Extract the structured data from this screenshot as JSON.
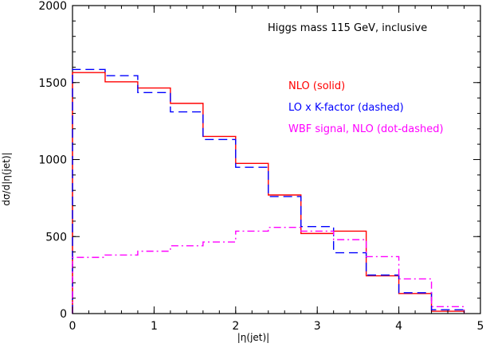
{
  "chart_data": {
    "type": "line",
    "title": "",
    "xlabel": "|η(jet)|",
    "ylabel": "dσ/d|η(jet)|",
    "xlim": [
      0,
      5
    ],
    "ylim": [
      0,
      2000
    ],
    "x_ticks": [
      "0",
      "1",
      "2",
      "3",
      "4",
      "5"
    ],
    "y_ticks": [
      "0",
      "500",
      "1000",
      "1500",
      "2000"
    ],
    "bin_edges": [
      0,
      0.4,
      0.8,
      1.2,
      1.6,
      2.0,
      2.4,
      2.8,
      3.2,
      3.6,
      4.0,
      4.4,
      4.8
    ],
    "annotation": "Higgs mass 115 GeV, inclusive",
    "legend": [
      {
        "text": "NLO (solid)",
        "color": "#ff0000"
      },
      {
        "text": "LO x K-factor (dashed)",
        "color": "#0000ff"
      },
      {
        "text": "WBF signal, NLO (dot-dashed)",
        "color": "#ff00ff"
      }
    ],
    "series": [
      {
        "style": "solid",
        "color": "#ff0000",
        "values": [
          1565,
          1505,
          1465,
          1365,
          1150,
          975,
          770,
          520,
          535,
          245,
          130,
          15
        ]
      },
      {
        "style": "dashed",
        "color": "#0000ff",
        "values": [
          1585,
          1545,
          1435,
          1310,
          1130,
          950,
          760,
          565,
          395,
          250,
          135,
          25
        ]
      },
      {
        "style": "dot-dashed",
        "color": "#ff00ff",
        "values": [
          365,
          380,
          405,
          440,
          465,
          535,
          560,
          535,
          480,
          370,
          225,
          45
        ]
      }
    ]
  }
}
